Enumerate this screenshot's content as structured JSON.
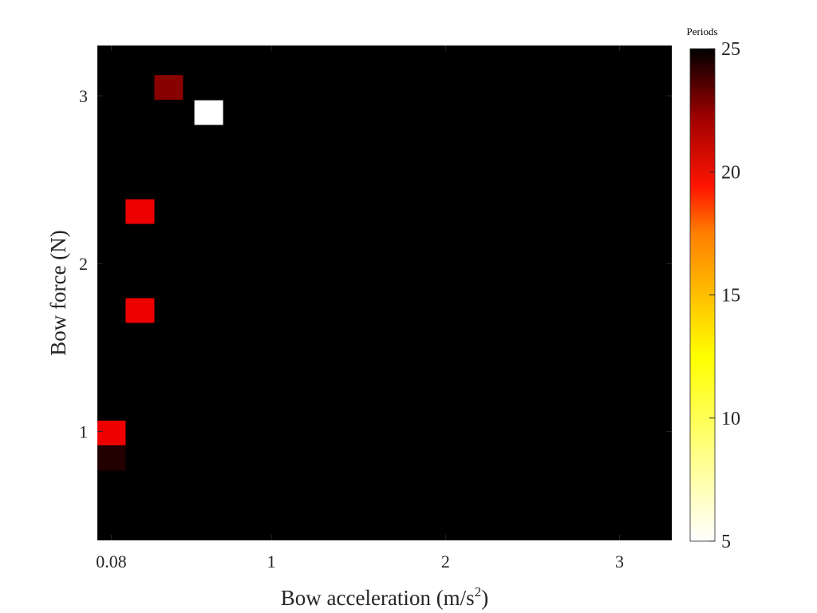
{
  "chart_data": {
    "type": "heatmap",
    "title": "",
    "xlabel_main": "Bow acceleration (m/s",
    "xlabel_sup": "2",
    "xlabel_end": ")",
    "ylabel": "Bow force (N)",
    "xlim": [
      0,
      3.3
    ],
    "ylim": [
      0.35,
      3.3
    ],
    "x_ticks": [
      {
        "value": 0.08,
        "label": "0.08"
      },
      {
        "value": 1,
        "label": "1"
      },
      {
        "value": 2,
        "label": "2"
      },
      {
        "value": 3,
        "label": "3"
      }
    ],
    "y_ticks": [
      {
        "value": 1,
        "label": "1"
      },
      {
        "value": 2,
        "label": "2"
      },
      {
        "value": 3,
        "label": "3"
      }
    ],
    "cell_width": 0.165,
    "cell_height": 0.147,
    "background_value": 25,
    "cells": [
      {
        "x": 0.08,
        "y": 0.99,
        "value": 18
      },
      {
        "x": 0.08,
        "y": 0.84,
        "value": 24
      },
      {
        "x": 0.245,
        "y": 1.72,
        "value": 18
      },
      {
        "x": 0.245,
        "y": 2.31,
        "value": 18
      },
      {
        "x": 0.41,
        "y": 3.05,
        "value": 21
      },
      {
        "x": 0.64,
        "y": 2.9,
        "value": 5
      }
    ],
    "colorbar": {
      "title": "Periods",
      "min": 5,
      "max": 25,
      "ticks": [
        "5",
        "10",
        "15",
        "20",
        "25"
      ],
      "colormap": "reversed-hot"
    }
  }
}
